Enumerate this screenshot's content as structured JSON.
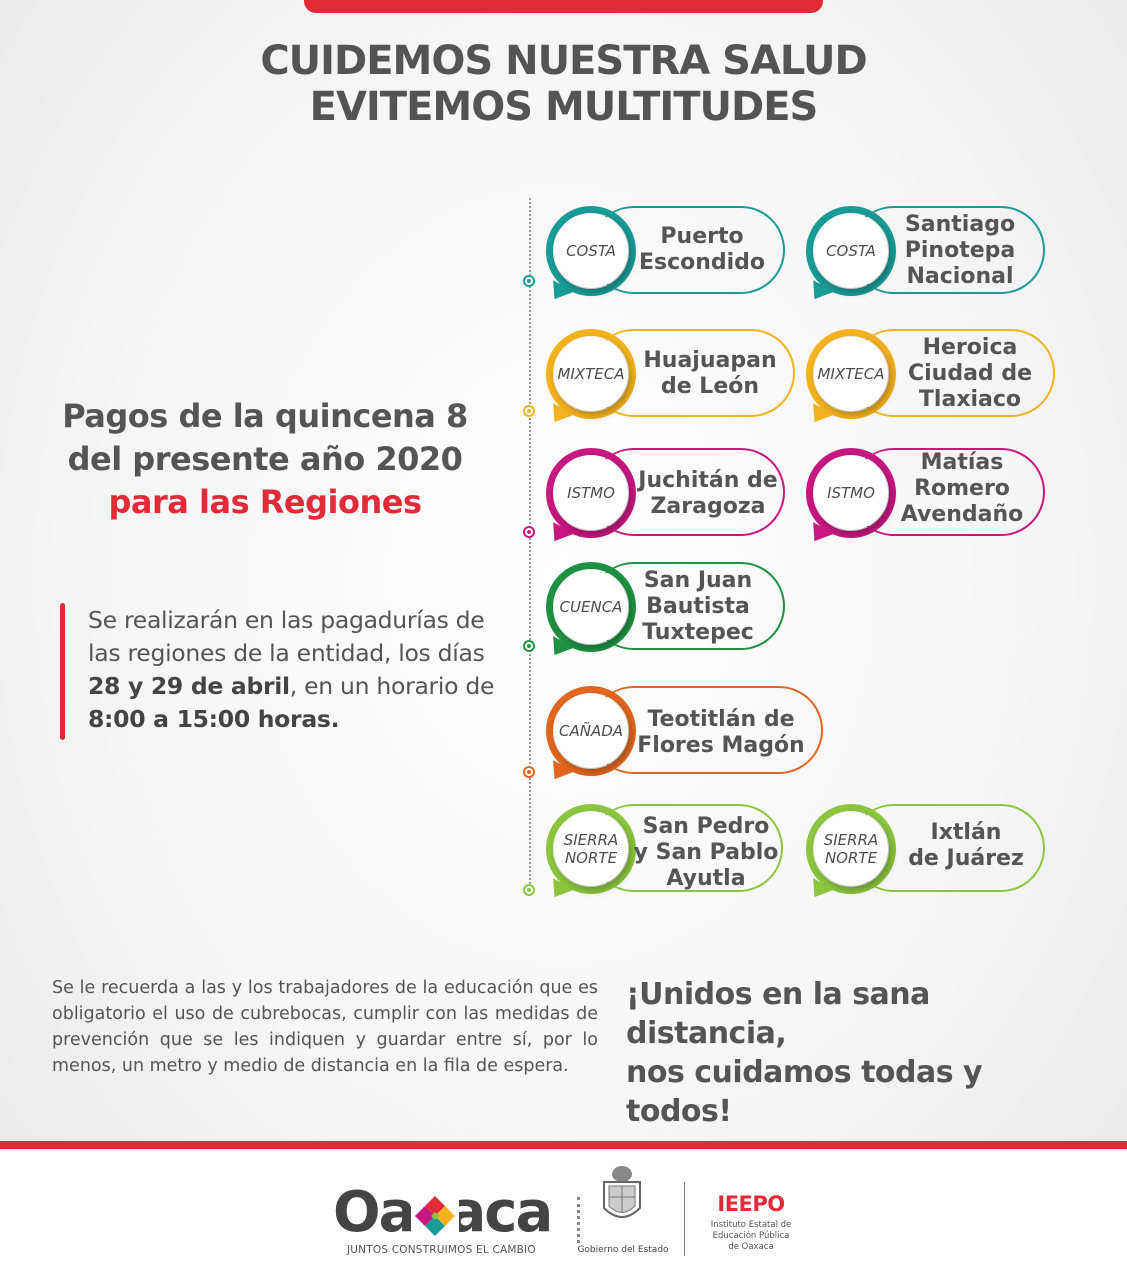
{
  "colors": {
    "accent_red": "#e22b38",
    "costa": "#1a9b97",
    "mixteca": "#f3b21e",
    "istmo": "#c6187f",
    "cuenca": "#1f9142",
    "canada": "#e1661f",
    "sierra": "#8cc63f"
  },
  "title": {
    "line1": "CUIDEMOS NUESTRA SALUD",
    "line2": "EVITEMOS MULTITUDES"
  },
  "pagos": {
    "line1": "Pagos de la quincena 8",
    "line2": "del presente año 2020",
    "line3": "para las Regiones"
  },
  "info": {
    "t1": "Se realizarán en las pagadurías de las regiones de la entidad, los días ",
    "b1": "28 y 29 de abril",
    "t2": ", en un horario de ",
    "b2": "8:00 a 15:00 horas."
  },
  "regions": {
    "r0": {
      "region": "COSTA",
      "city1": "Puerto",
      "city2": "Escondido"
    },
    "r1": {
      "region": "COSTA",
      "city1": "Santiago",
      "city2": "Pinotepa",
      "city3": "Nacional"
    },
    "r2": {
      "region": "MIXTECA",
      "city1": "Huajuapan",
      "city2": "de León"
    },
    "r3": {
      "region": "MIXTECA",
      "city1": "Heroica",
      "city2": "Ciudad de",
      "city3": "Tlaxiaco"
    },
    "r4": {
      "region": "ISTMO",
      "city1": "Juchitán de",
      "city2": "Zaragoza"
    },
    "r5": {
      "region": "ISTMO",
      "city1": "Matías",
      "city2": "Romero",
      "city3": "Avendaño"
    },
    "r6": {
      "region": "CUENCA",
      "city1": "San Juan",
      "city2": "Bautista",
      "city3": "Tuxtepec"
    },
    "r7": {
      "region": "CAÑADA",
      "city1": "Teotitlán de",
      "city2": "Flores Magón"
    },
    "r8": {
      "region1": "SIERRA",
      "region2": "NORTE",
      "city1": "San Pedro",
      "city2": "y San Pablo",
      "city3": "Ayutla"
    },
    "r9": {
      "region1": "SIERRA",
      "region2": "NORTE",
      "city1": "Ixtlán",
      "city2": "de Juárez"
    }
  },
  "note": "Se le recuerda a las y los trabajadores de la educación que es obligatorio el uso de cubrebocas, cumplir con las medidas de prevención que se les indiquen y guardar entre sí, por lo menos, un metro y medio de distancia en la fila de espera.",
  "slogan": {
    "line1": "¡Unidos en la sana distancia,",
    "line2": "nos cuidamos todas y todos!"
  },
  "footer": {
    "oaxaca": "Oaxaca",
    "oaxaca_tag": "JUNTOS CONSTRUIMOS EL CAMBIO",
    "gobierno": "Gobierno del Estado",
    "ieepo": "IEEPO",
    "ieepo_sub1": "Instituto Estatal de",
    "ieepo_sub2": "Educación Pública",
    "ieepo_sub3": "de Oaxaca"
  }
}
